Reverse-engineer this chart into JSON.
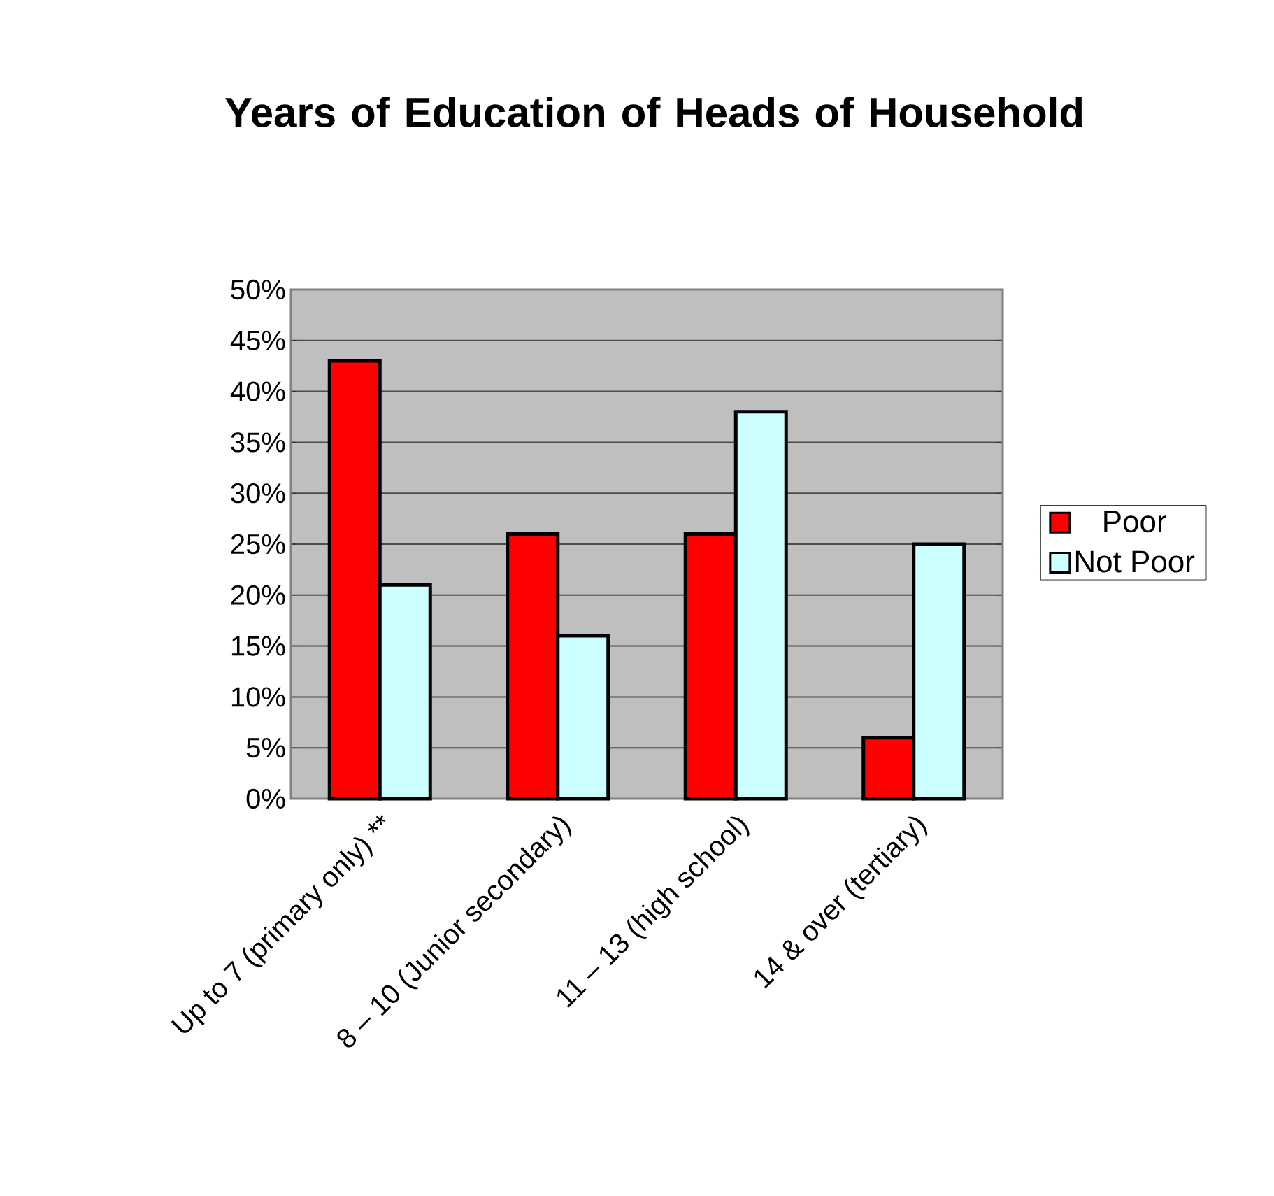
{
  "chart_data": {
    "type": "bar",
    "title": "Years of Education of Heads of Household",
    "categories": [
      "Up to 7 (primary only) **",
      "8 – 10 (Junior secondary)",
      "11 – 13 (high school)",
      "14 & over (tertiary)"
    ],
    "series": [
      {
        "name": "Poor",
        "color": "#ff0000",
        "values": [
          43,
          26,
          26,
          6
        ]
      },
      {
        "name": "Not Poor",
        "color": "#ccffff",
        "values": [
          21,
          16,
          38,
          25
        ]
      }
    ],
    "ylim": [
      0,
      50
    ],
    "yticks": [
      {
        "value": 0,
        "label": "0%"
      },
      {
        "value": 5,
        "label": "5%"
      },
      {
        "value": 10,
        "label": "10%"
      },
      {
        "value": 15,
        "label": "15%"
      },
      {
        "value": 20,
        "label": "20%"
      },
      {
        "value": 25,
        "label": "25%"
      },
      {
        "value": 30,
        "label": "30%"
      },
      {
        "value": 35,
        "label": "35%"
      },
      {
        "value": 40,
        "label": "40%"
      },
      {
        "value": 45,
        "label": "45%"
      },
      {
        "value": 50,
        "label": "50%"
      }
    ],
    "grid": "y",
    "legend": "right"
  }
}
